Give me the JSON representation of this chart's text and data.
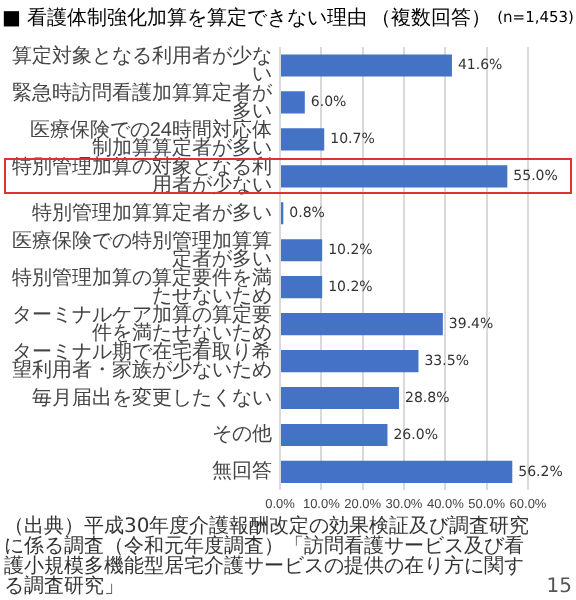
{
  "chart_data": {
    "type": "bar",
    "orientation": "horizontal",
    "title": "■ 看護体制強化加算を算定できない理由",
    "subtitle": "（複数回答）",
    "categories": [
      "算定対象となる利用者が少ない",
      "緊急時訪問看護加算算定者が多い",
      "医療保険での24時間対応体制加算算定者が多い",
      "特別管理加算の対象となる利用者が少ない",
      "特別管理加算算定者が多い",
      "医療保険での特別管理加算算定者が多い",
      "特別管理加算の算定要件を満たせないため",
      "ターミナルケア加算の算定要件を満たせないため",
      "ターミナル期で在宅看取り希望利用者・家族が少ないため",
      "毎月届出を変更したくない",
      "その他",
      "無回答"
    ],
    "values": [
      41.6,
      6.0,
      10.7,
      55.0,
      0.8,
      10.2,
      10.2,
      39.4,
      33.5,
      28.8,
      26.0,
      56.2
    ],
    "value_labels": [
      "41.6%",
      "6.0%",
      "10.7%",
      "55.0%",
      "0.8%",
      "10.2%",
      "10.2%",
      "39.4%",
      "33.5%",
      "28.8%",
      "26.0%",
      "56.2%"
    ],
    "color": "#4472c4",
    "xlim": [
      0,
      60
    ],
    "xticks": [
      {
        "value": 0,
        "label": "0.0%"
      },
      {
        "value": 10,
        "label": "10.0%"
      },
      {
        "value": 20,
        "label": "20.0%"
      },
      {
        "value": 30,
        "label": "30.0%"
      },
      {
        "value": 40,
        "label": "40.0%"
      },
      {
        "value": 50,
        "label": "50.0%"
      },
      {
        "value": 60,
        "label": "60.0%"
      }
    ],
    "grid": "x",
    "annotations": [
      "(n=1,453)",
      "（出典）平成30年度介護報酬改定の効果検証及び調査研究に係る調査（令和元年度調査）「訪問看護サービス及び看護小規模多機能型居宅介護サービスの提供の在り方に関する調査研究」",
      "15"
    ]
  }
}
